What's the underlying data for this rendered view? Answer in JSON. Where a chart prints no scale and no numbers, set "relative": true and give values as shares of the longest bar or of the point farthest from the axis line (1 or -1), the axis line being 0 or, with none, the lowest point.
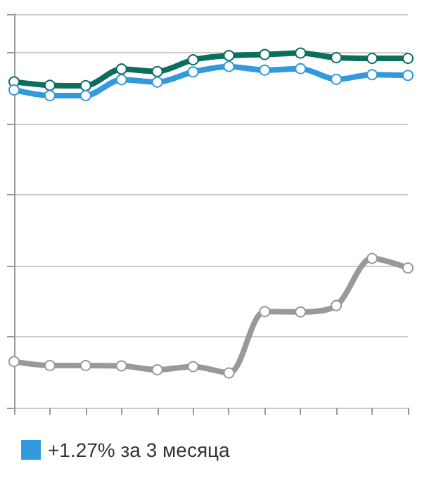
{
  "chart_data": {
    "type": "line",
    "relative": true,
    "categories": [
      null,
      null,
      null,
      null,
      null,
      null,
      null,
      null,
      null,
      null,
      null,
      null
    ],
    "series": [
      {
        "color": "#0b6e5f",
        "values": [
          0.919,
          0.909,
          0.908,
          0.955,
          0.948,
          0.981,
          0.993,
          0.996,
          1,
          0.987,
          0.985,
          0.985
        ]
      },
      {
        "name": "+1.27% за 3 месяца",
        "color": "#3399dd",
        "values": [
          0.896,
          0.88,
          0.88,
          0.925,
          0.918,
          0.947,
          0.962,
          0.952,
          0.956,
          0.926,
          0.939,
          0.937
        ]
      },
      {
        "color": "#999999",
        "values": [
          0.13,
          0.119,
          0.119,
          0.118,
          0.107,
          0.116,
          0.098,
          0.271,
          0.27,
          0.288,
          0.421,
          0.394
        ]
      }
    ],
    "grid": "y",
    "legend": "bottom left",
    "marker": "circle",
    "line_style": "solid"
  }
}
